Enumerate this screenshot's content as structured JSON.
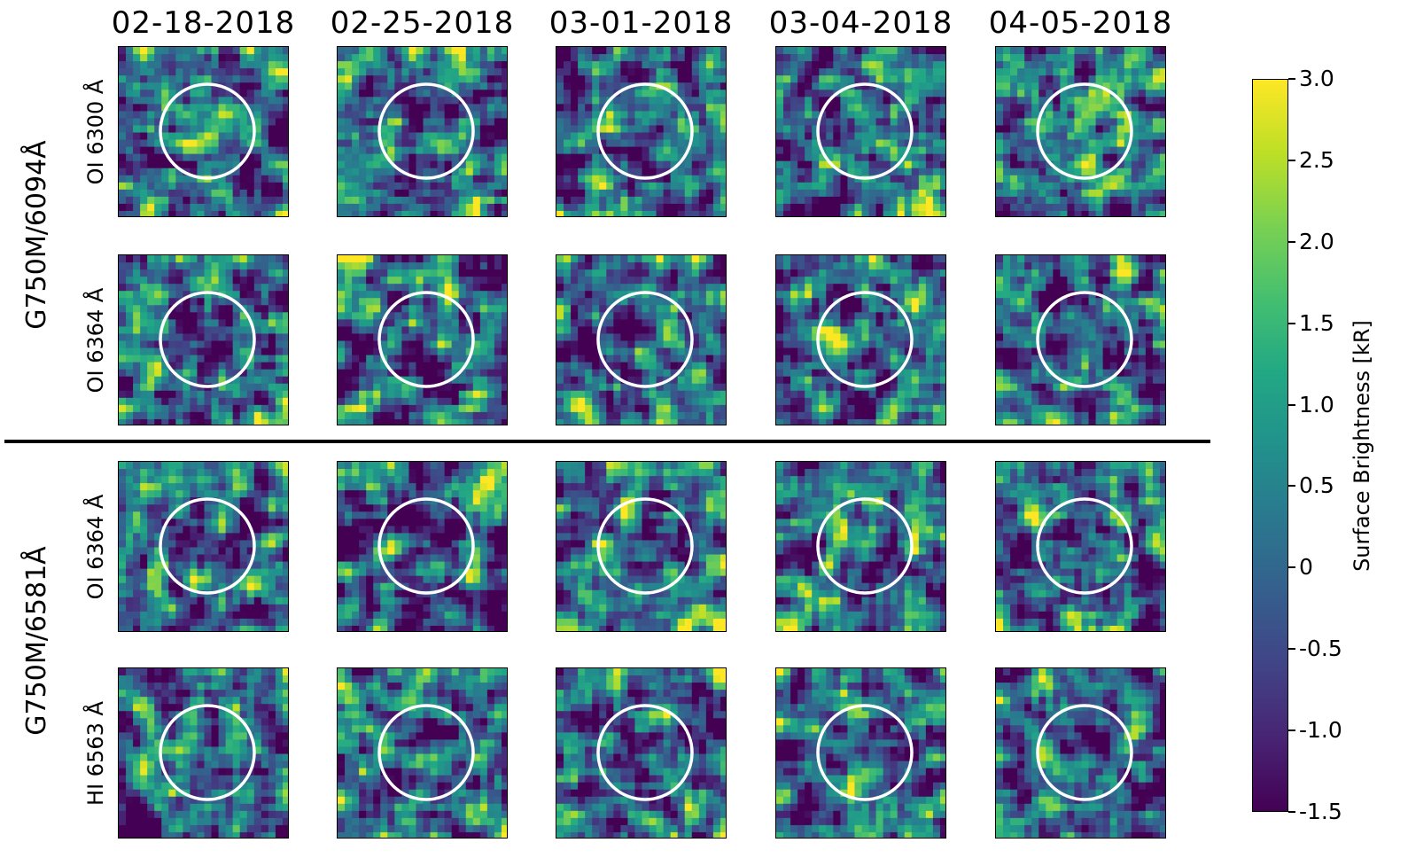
{
  "chart_data": {
    "type": "heatmap",
    "columns": [
      "02-18-2018",
      "02-25-2018",
      "03-01-2018",
      "03-04-2018",
      "04-05-2018"
    ],
    "groups": [
      {
        "label": "G750M/6094Å",
        "rows": [
          "OI 6300 Å",
          "OI 6364 Å"
        ]
      },
      {
        "label": "G750M/6581Å",
        "rows": [
          "OI 6364 Å",
          "HI 6563 Å"
        ]
      }
    ],
    "colorbar": {
      "label": "Surface Brightness [kR]",
      "range": [
        -1.5,
        3.0
      ],
      "ticks": [
        "-1.5",
        "-1.0",
        "-0.5",
        "0",
        "0.5",
        "1.0",
        "1.5",
        "2.0",
        "2.5",
        "3.0"
      ],
      "tick_values": [
        -1.5,
        -1.0,
        -0.5,
        0,
        0.5,
        1.0,
        1.5,
        2.0,
        2.5,
        3.0
      ],
      "colormap": "viridis"
    },
    "grid": false
  }
}
